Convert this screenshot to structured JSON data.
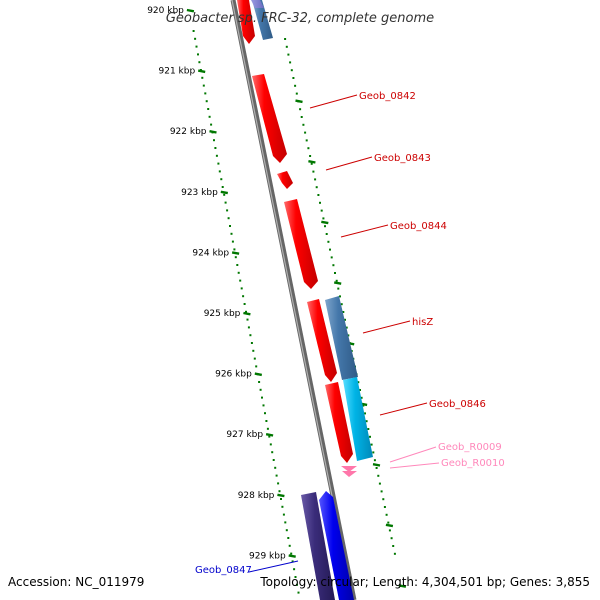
{
  "title": "Geobacter sp. FRC-32, complete genome",
  "footer": {
    "accession": "Accession: NC_011979",
    "summary": "Topology: circular; Length: 4,304,501 bp; Genes: 3,855"
  },
  "ticks": [
    {
      "kb": 920,
      "label": "920 kbp"
    },
    {
      "kb": 921,
      "label": "921 kbp"
    },
    {
      "kb": 922,
      "label": "922 kbp"
    },
    {
      "kb": 923,
      "label": "923 kbp"
    },
    {
      "kb": 924,
      "label": "924 kbp"
    },
    {
      "kb": 925,
      "label": "925 kbp"
    },
    {
      "kb": 926,
      "label": "926 kbp"
    },
    {
      "kb": 927,
      "label": "927 kbp"
    },
    {
      "kb": 928,
      "label": "928 kbp"
    },
    {
      "kb": 929,
      "label": "929 kbp"
    }
  ],
  "labels": [
    {
      "text": "Geob_0842",
      "color": "#cc0000"
    },
    {
      "text": "Geob_0843",
      "color": "#cc0000"
    },
    {
      "text": "Geob_0844",
      "color": "#cc0000"
    },
    {
      "text": "hisZ",
      "color": "#cc0000"
    },
    {
      "text": "Geob_0846",
      "color": "#cc0000"
    },
    {
      "text": "Geob_R0009",
      "color": "#ff88bb"
    },
    {
      "text": "Geob_R0010",
      "color": "#ff88bb"
    },
    {
      "text": "Geob_0847",
      "color": "#0000cc"
    }
  ],
  "colors": {
    "cds": "#ff0000",
    "cds_alt": "#4477aa",
    "cds_light": "#00aadd",
    "cds_blue": "#0000ee",
    "cds_dark": "#332288",
    "rna": "#ff66aa",
    "tick": "#007700",
    "backbone": "#888888"
  }
}
